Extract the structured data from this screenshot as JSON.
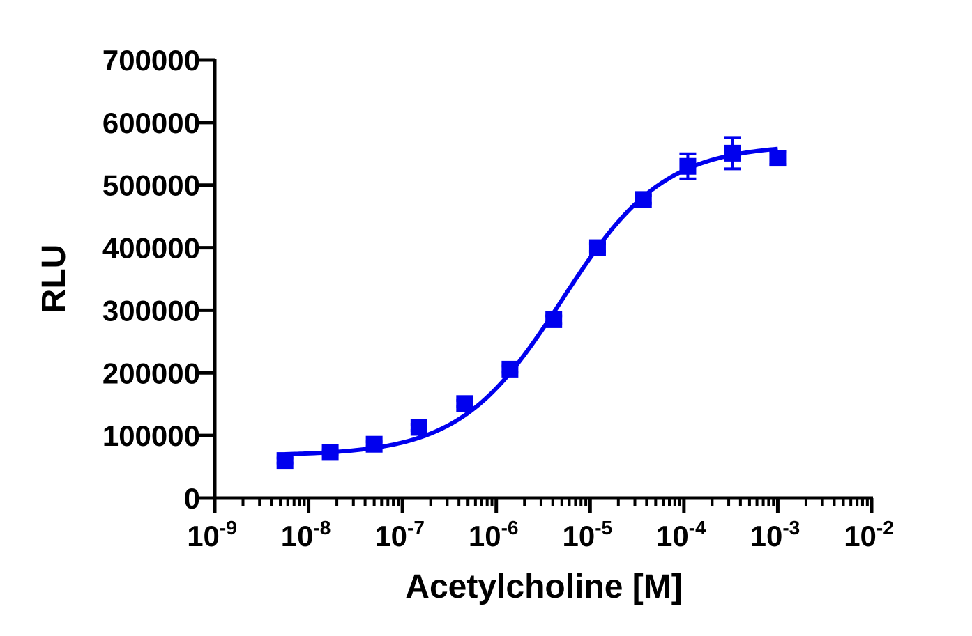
{
  "chart_data": {
    "type": "scatter",
    "xlabel": "Acetylcholine [M]",
    "ylabel": "RLU",
    "x_scale": "log",
    "xlim": [
      1e-09,
      0.01
    ],
    "ylim": [
      0,
      700000
    ],
    "grid": false,
    "y_ticks": [
      0,
      100000,
      200000,
      300000,
      400000,
      500000,
      600000,
      700000
    ],
    "y_tick_labels": [
      "0",
      "100000",
      "200000",
      "300000",
      "400000",
      "500000",
      "600000",
      "700000"
    ],
    "x_ticks": [
      {
        "base": "10",
        "exp": "-9",
        "value": 1e-09
      },
      {
        "base": "10",
        "exp": "-8",
        "value": 1e-08
      },
      {
        "base": "10",
        "exp": "-7",
        "value": 1e-07
      },
      {
        "base": "10",
        "exp": "-6",
        "value": 1e-06
      },
      {
        "base": "10",
        "exp": "-5",
        "value": 1e-05
      },
      {
        "base": "10",
        "exp": "-4",
        "value": 0.0001
      },
      {
        "base": "10",
        "exp": "-3",
        "value": 0.001
      },
      {
        "base": "10",
        "exp": "-2",
        "value": 0.01
      }
    ],
    "series": [
      {
        "color": "#0000ee",
        "marker": "square",
        "points": [
          {
            "x": 5.6e-09,
            "y": 60000,
            "err": 4000
          },
          {
            "x": 1.7e-08,
            "y": 73000,
            "err": 4000
          },
          {
            "x": 5e-08,
            "y": 86000,
            "err": 4000
          },
          {
            "x": 1.5e-07,
            "y": 113000,
            "err": 5000
          },
          {
            "x": 4.6e-07,
            "y": 151000,
            "err": 5000
          },
          {
            "x": 1.4e-06,
            "y": 206000,
            "err": 5000
          },
          {
            "x": 4.1e-06,
            "y": 285000,
            "err": 6000
          },
          {
            "x": 1.2e-05,
            "y": 400000,
            "err": 6000
          },
          {
            "x": 3.7e-05,
            "y": 477000,
            "err": 6000
          },
          {
            "x": 0.00011,
            "y": 530000,
            "err": 20000
          },
          {
            "x": 0.00033,
            "y": 551000,
            "err": 25000
          },
          {
            "x": 0.001,
            "y": 543000,
            "err": 10000
          }
        ],
        "fit": {
          "model": "four-parameter logistic",
          "bottom": 68000,
          "top": 565000,
          "logEC50": -5.3,
          "hill": 0.8,
          "x_range": [
            5.6e-09,
            0.001
          ]
        }
      }
    ]
  }
}
